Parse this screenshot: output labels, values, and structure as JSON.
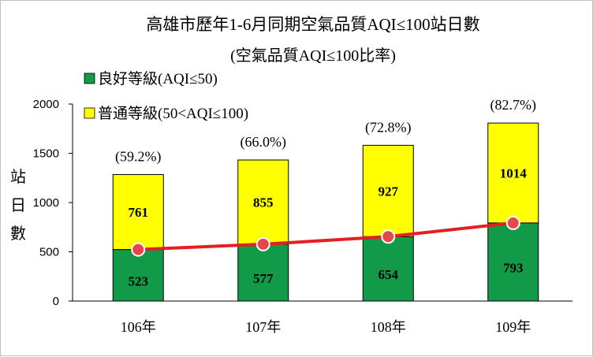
{
  "chart_data": {
    "type": "bar",
    "stacked": true,
    "title": "高雄市歷年1-6月同期空氣品質AQI≤100站日數",
    "subtitle": "(空氣品質AQI≤100比率)",
    "ylabel": "站日數",
    "ylim": [
      0,
      2000
    ],
    "yticks": [
      0,
      500,
      1000,
      1500,
      2000
    ],
    "categories": [
      "106年",
      "107年",
      "108年",
      "109年"
    ],
    "series": [
      {
        "name": "良好等級(AQI≤50)",
        "values": [
          523,
          577,
          654,
          793
        ],
        "color": "#119a48"
      },
      {
        "name": "普通等級(50<AQI≤100)",
        "values": [
          761,
          855,
          927,
          1014
        ],
        "color": "#ffff00"
      }
    ],
    "line": {
      "values": [
        523,
        577,
        654,
        793
      ],
      "color": "#e31f1f",
      "marker_color": "#e8474a"
    },
    "percent_labels": [
      "(59.2%)",
      "(66.0%)",
      "(72.8%)",
      "(82.7%)"
    ],
    "legend_position": "top-left",
    "grid": false
  }
}
